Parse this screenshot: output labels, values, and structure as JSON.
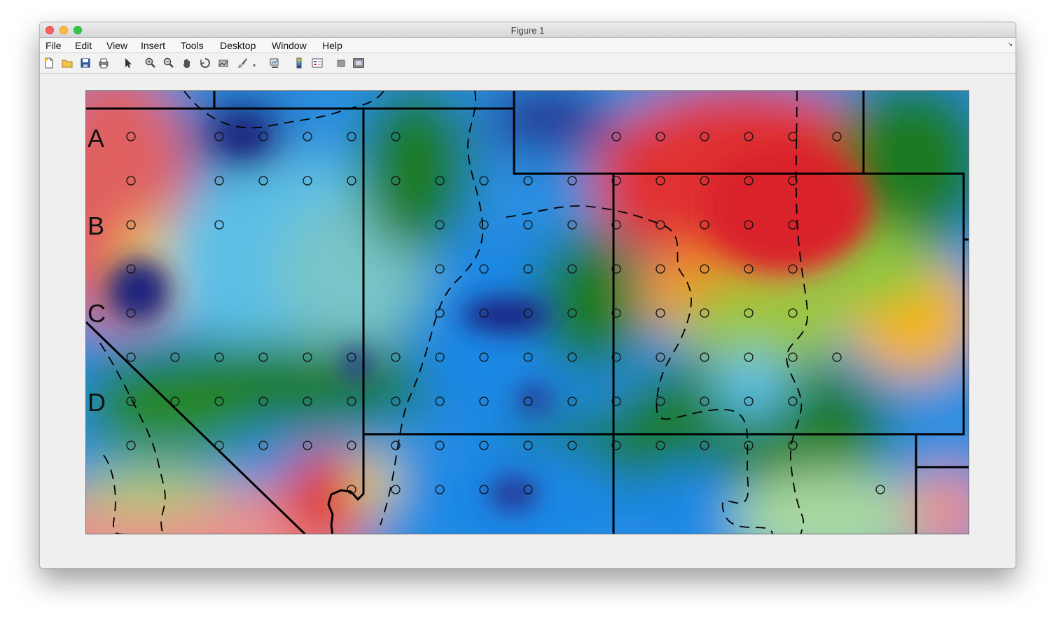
{
  "window": {
    "title": "Figure 1"
  },
  "menu": [
    "File",
    "Edit",
    "View",
    "Insert",
    "Tools",
    "Desktop",
    "Window",
    "Help"
  ],
  "toolbar": {
    "icons": [
      "new-figure-icon",
      "open-file-icon",
      "save-icon",
      "print-icon",
      "pointer-icon",
      "zoom-in-icon",
      "zoom-out-icon",
      "pan-icon",
      "rotate-icon",
      "data-cursor-icon",
      "brush-icon",
      "brush-dropdown-icon",
      "link-plot-icon",
      "colorbar-icon",
      "legend-icon",
      "hide-plot-tools-icon",
      "show-plot-tools-icon"
    ]
  },
  "plot": {
    "row_labels": [
      "A",
      "B",
      "C",
      "D"
    ],
    "heatmap_colors": {
      "deep_blue": "#1a237e",
      "blue": "#1e88e5",
      "light_blue": "#5cbfe6",
      "green": "#1b7a24",
      "yellow_green": "#8dc63f",
      "yellow": "#f2e11a",
      "orange": "#f7a21b",
      "red": "#e03030",
      "pink": "#e8908c"
    }
  }
}
